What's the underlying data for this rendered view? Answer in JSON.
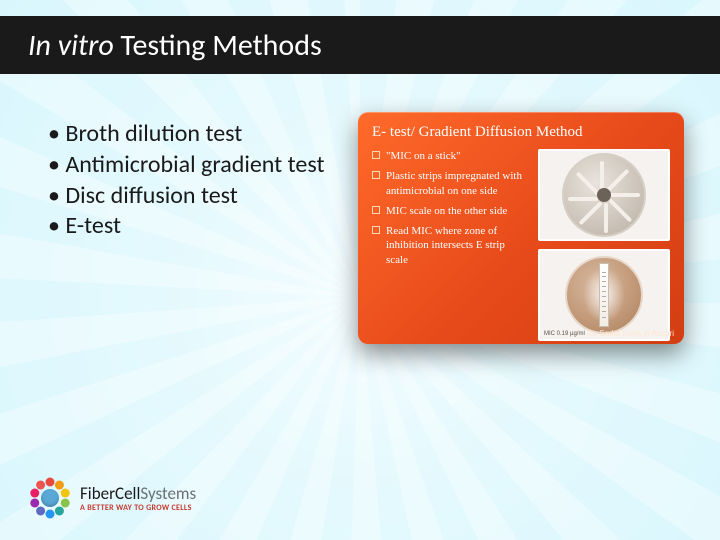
{
  "header": {
    "title_italic": "In vitro",
    "title_rest": " Testing Methods",
    "bg": "#1a1a1a",
    "color": "#ffffff"
  },
  "bullets": {
    "items": [
      "Broth dilution test",
      "Antimicrobial gradient test",
      "Disc diffusion test",
      "E-test"
    ],
    "color": "#1a1a1a",
    "fontsize": 24
  },
  "card": {
    "title": "E- test/ Gradient Diffusion Method",
    "bg_gradient": [
      "#ff6a2a",
      "#e74a1a",
      "#d23e12"
    ],
    "text_color": "#ffffff",
    "items": [
      "\"MIC on a stick\"",
      "Plastic strips impregnated with antimicrobial on one side",
      "MIC scale on the other side",
      "Read MIC where zone of inhibition intersects E strip scale"
    ],
    "mic_label": "MIC 0.19 µg/ml",
    "credit": "Dr Sadaf Kona in Ansari",
    "petri1": {
      "rays": 8,
      "dish_colors": [
        "#e9e3dc",
        "#cfc7bd",
        "#b8afa3"
      ]
    },
    "petri2": {
      "dish_colors": [
        "#d8b89f",
        "#c19877",
        "#a97e5d"
      ]
    }
  },
  "logo": {
    "brand_bold": "FiberCell",
    "brand_light": "Systems",
    "tagline": "A BETTER WAY TO GROW CELLS",
    "dot_colors": [
      "#e74a3c",
      "#f39c12",
      "#f1c40f",
      "#8bc34a",
      "#26a69a",
      "#2196f3",
      "#5c6bc0",
      "#9c27b0",
      "#e91e63",
      "#ef5350"
    ],
    "center_color": "#5aa8d6",
    "tagline_color": "#c43a2e"
  },
  "background": {
    "sunburst_colors": [
      "#b9deed",
      "#cfe9f3"
    ],
    "center_glow": "#eaf5fa"
  }
}
